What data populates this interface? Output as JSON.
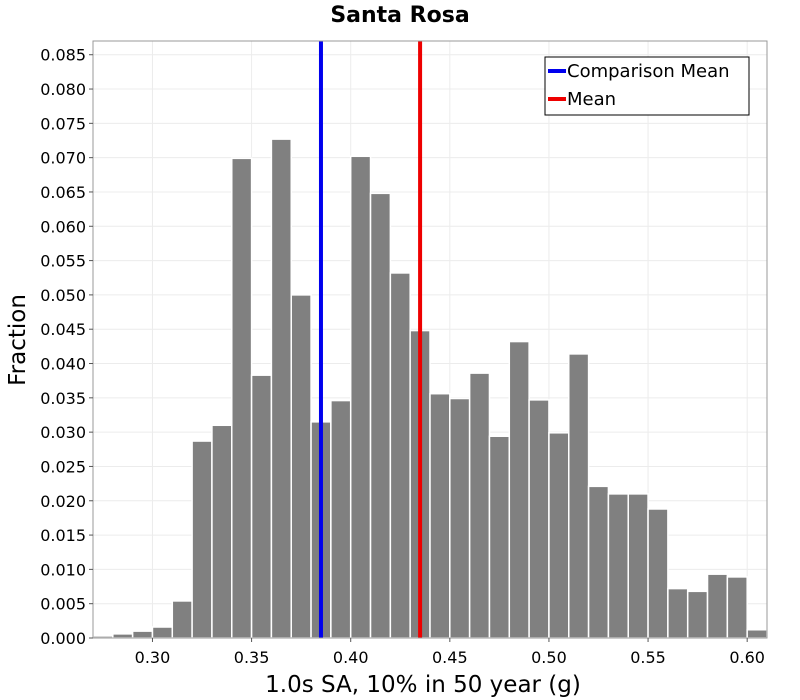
{
  "chart_data": {
    "type": "bar",
    "title": "Santa Rosa",
    "xlabel": "1.0s SA, 10% in 50 year (g)",
    "ylabel": "Fraction",
    "xlim": [
      0.27,
      0.61
    ],
    "ylim": [
      0.0,
      0.087
    ],
    "grid": true,
    "legend_position": "top-right",
    "bin_width": 0.01,
    "x_ticks": [
      0.3,
      0.35,
      0.4,
      0.45,
      0.5,
      0.55,
      0.6
    ],
    "x_tick_labels": [
      "0.30",
      "0.35",
      "0.40",
      "0.45",
      "0.50",
      "0.55",
      "0.60"
    ],
    "y_ticks": [
      0.0,
      0.005,
      0.01,
      0.015,
      0.02,
      0.025,
      0.03,
      0.035,
      0.04,
      0.045,
      0.05,
      0.055,
      0.06,
      0.065,
      0.07,
      0.075,
      0.08,
      0.085
    ],
    "y_tick_labels": [
      "0.000",
      "0.005",
      "0.010",
      "0.015",
      "0.020",
      "0.025",
      "0.030",
      "0.035",
      "0.040",
      "0.045",
      "0.050",
      "0.055",
      "0.060",
      "0.065",
      "0.070",
      "0.075",
      "0.080",
      "0.085"
    ],
    "bins": [
      {
        "x": 0.275,
        "value": 0.0003
      },
      {
        "x": 0.285,
        "value": 0.0006
      },
      {
        "x": 0.295,
        "value": 0.001
      },
      {
        "x": 0.305,
        "value": 0.0016
      },
      {
        "x": 0.315,
        "value": 0.0054
      },
      {
        "x": 0.325,
        "value": 0.0287
      },
      {
        "x": 0.335,
        "value": 0.031
      },
      {
        "x": 0.345,
        "value": 0.0699
      },
      {
        "x": 0.355,
        "value": 0.0383
      },
      {
        "x": 0.365,
        "value": 0.0727
      },
      {
        "x": 0.375,
        "value": 0.05
      },
      {
        "x": 0.385,
        "value": 0.0315
      },
      {
        "x": 0.395,
        "value": 0.0346
      },
      {
        "x": 0.405,
        "value": 0.0702
      },
      {
        "x": 0.415,
        "value": 0.0648
      },
      {
        "x": 0.425,
        "value": 0.0532
      },
      {
        "x": 0.435,
        "value": 0.0448
      },
      {
        "x": 0.445,
        "value": 0.0356
      },
      {
        "x": 0.455,
        "value": 0.0349
      },
      {
        "x": 0.465,
        "value": 0.0386
      },
      {
        "x": 0.475,
        "value": 0.0294
      },
      {
        "x": 0.485,
        "value": 0.0432
      },
      {
        "x": 0.495,
        "value": 0.0347
      },
      {
        "x": 0.505,
        "value": 0.0299
      },
      {
        "x": 0.515,
        "value": 0.0414
      },
      {
        "x": 0.525,
        "value": 0.0221
      },
      {
        "x": 0.535,
        "value": 0.021
      },
      {
        "x": 0.545,
        "value": 0.021
      },
      {
        "x": 0.555,
        "value": 0.0188
      },
      {
        "x": 0.565,
        "value": 0.0072
      },
      {
        "x": 0.575,
        "value": 0.0068
      },
      {
        "x": 0.585,
        "value": 0.0093
      },
      {
        "x": 0.595,
        "value": 0.0089
      },
      {
        "x": 0.605,
        "value": 0.0012
      }
    ],
    "reference_lines": [
      {
        "name": "Comparison Mean",
        "x": 0.385,
        "color": "#0000ee"
      },
      {
        "name": "Mean",
        "x": 0.435,
        "color": "#ee0000"
      }
    ],
    "colors": {
      "bar": "#808080",
      "background": "#ffffff",
      "grid": "#ececec"
    }
  }
}
